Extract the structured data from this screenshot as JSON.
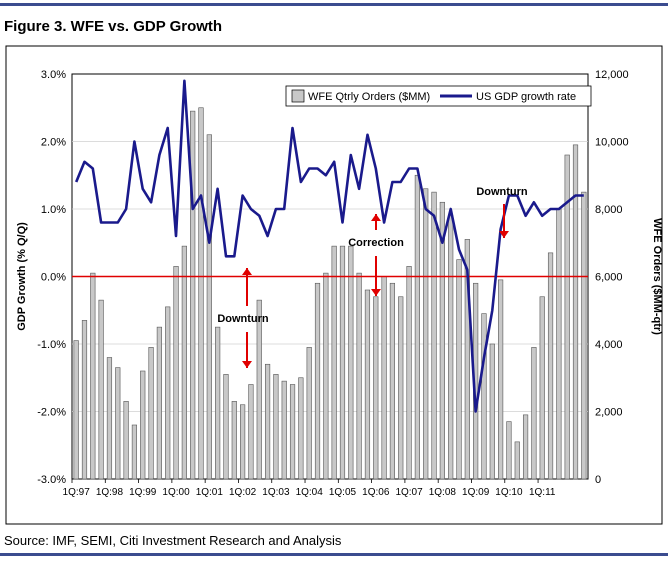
{
  "figure_title": "Figure 3. WFE vs. GDP Growth",
  "source": "Source: IMF, SEMI, Citi Investment Research and Analysis",
  "colors": {
    "rule": "#3b4c8f",
    "gdp_line": "#1a1a8c",
    "zero_line": "#e00000",
    "bars": "#c8c8c8",
    "arrows": "#e00000"
  },
  "chart_data": {
    "type": "bar",
    "title": "",
    "ylabel_left": "GDP Growth (% Q/Q)",
    "ylabel_right": "WFE Orders ($MM-qtr)",
    "left_axis": {
      "min": -3.0,
      "max": 3.0,
      "ticks": [
        "-3.0%",
        "-2.0%",
        "-1.0%",
        "0.0%",
        "1.0%",
        "2.0%",
        "3.0%"
      ]
    },
    "right_axis": {
      "min": 0,
      "max": 12000,
      "ticks": [
        "0",
        "2,000",
        "4,000",
        "6,000",
        "8,000",
        "10,000",
        "12,000"
      ]
    },
    "x_tick_labels": [
      "1Q:97",
      "1Q:98",
      "1Q:99",
      "1Q:00",
      "1Q:01",
      "1Q:02",
      "1Q:03",
      "1Q:04",
      "1Q:05",
      "1Q:06",
      "1Q:07",
      "1Q:08",
      "1Q:09",
      "1Q:10",
      "1Q:11"
    ],
    "legend_position": "top-right",
    "grid": true,
    "series": [
      {
        "name": "WFE Qtrly Orders ($MM)",
        "axis": "right",
        "kind": "bar",
        "values": [
          4100,
          4700,
          6100,
          5300,
          3600,
          3300,
          2300,
          1600,
          3200,
          3900,
          4500,
          5100,
          6300,
          6900,
          10900,
          11000,
          10200,
          4500,
          3100,
          2300,
          2200,
          2800,
          5300,
          3400,
          3100,
          2900,
          2800,
          3000,
          3900,
          5800,
          6100,
          6900,
          6900,
          6900,
          6100,
          5600,
          5400,
          6000,
          5800,
          5400,
          6300,
          9000,
          8600,
          8500,
          8200,
          7800,
          6500,
          7100,
          5800,
          4900,
          4000,
          5900,
          1700,
          1100,
          1900,
          3900,
          5400,
          6700,
          8000,
          9600,
          9900,
          8500
        ],
        "x": [
          "1Q97",
          "2Q97",
          "3Q97",
          "4Q97",
          "1Q98",
          "2Q98",
          "3Q98",
          "4Q98",
          "1Q99",
          "2Q99",
          "3Q99",
          "4Q99",
          "1Q00",
          "2Q00",
          "3Q00",
          "4Q00",
          "1Q01",
          "2Q01",
          "3Q01",
          "4Q01",
          "1Q02",
          "2Q02",
          "3Q02",
          "4Q02",
          "1Q03",
          "2Q03",
          "3Q03",
          "4Q03",
          "1Q04",
          "2Q04",
          "3Q04",
          "4Q04",
          "1Q05",
          "2Q05",
          "3Q05",
          "4Q05",
          "1Q06",
          "2Q06",
          "3Q06",
          "4Q06",
          "1Q07",
          "2Q07",
          "3Q07",
          "4Q07",
          "1Q08",
          "2Q08",
          "3Q08",
          "4Q08",
          "1Q09",
          "2Q09",
          "3Q09",
          "4Q09",
          "1Q10",
          "2Q10",
          "3Q10",
          "4Q10",
          "1Q11",
          "2Q11",
          "3Q11",
          "4Q11",
          "1Q12",
          "2Q12"
        ]
      },
      {
        "name": "US GDP growth rate",
        "axis": "left",
        "kind": "line",
        "values": [
          1.4,
          1.7,
          1.6,
          0.8,
          0.8,
          0.8,
          1.0,
          2.0,
          1.3,
          1.1,
          1.8,
          2.2,
          0.6,
          2.9,
          1.0,
          1.2,
          0.5,
          1.3,
          0.3,
          0.3,
          1.2,
          1.0,
          0.9,
          0.6,
          1.0,
          1.0,
          2.2,
          1.4,
          1.6,
          1.6,
          1.5,
          1.7,
          0.8,
          1.8,
          1.3,
          2.1,
          1.6,
          0.8,
          1.4,
          1.4,
          1.6,
          1.6,
          1.0,
          0.9,
          0.5,
          1.0,
          0.4,
          0.1,
          -2.0,
          -1.2,
          -0.5,
          0.7,
          1.2,
          1.2,
          0.9,
          1.1,
          0.9,
          1.0,
          1.0,
          1.1,
          1.2,
          1.2
        ]
      }
    ],
    "annotations": [
      {
        "text": "Downturn",
        "near": "1Q:02",
        "arrows": "up-and-down"
      },
      {
        "text": "Correction",
        "near": "1Q:05",
        "arrows": "up-and-down"
      },
      {
        "text": "Downturn",
        "near": "1Q:09",
        "arrows": "down"
      }
    ]
  }
}
